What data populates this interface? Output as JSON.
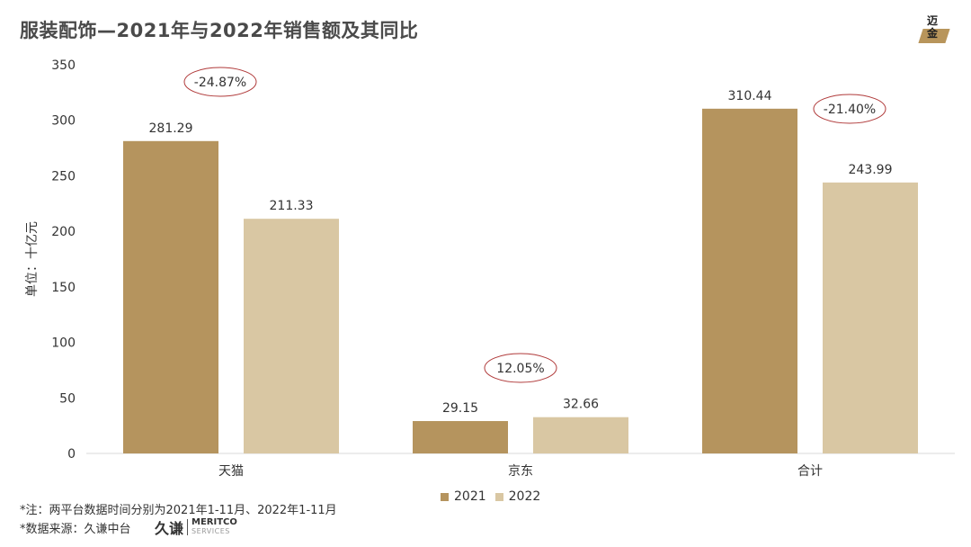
{
  "title": "服装配饰—2021年与2022年销售额及其同比",
  "logo_text": "迈金",
  "chart_data": {
    "type": "bar",
    "categories": [
      "天猫",
      "京东",
      "合计"
    ],
    "series": [
      {
        "name": "2021",
        "values": [
          281.29,
          29.15,
          310.44
        ],
        "color": "#b5945e"
      },
      {
        "name": "2022",
        "values": [
          211.33,
          32.66,
          243.99
        ],
        "color": "#d9c7a3"
      }
    ],
    "data_labels": [
      [
        "281.29",
        "29.15",
        "310.44"
      ],
      [
        "211.33",
        "32.66",
        "243.99"
      ]
    ],
    "yoy_labels": [
      "-24.87%",
      "12.05%",
      "-21.40%"
    ],
    "ylabel": "单位：十亿元",
    "ylim": [
      0,
      350
    ],
    "yticks": [
      0,
      50,
      100,
      150,
      200,
      250,
      300,
      350
    ],
    "legend_position": "bottom",
    "grid": false
  },
  "footnote_1": "*注：两平台数据时间分别为2021年1-11月、2022年1-11月",
  "footnote_2": "*数据来源：久谦中台",
  "brand": {
    "cn": "久谦",
    "en_main": "MERITCO",
    "en_sub": "SERVICES"
  }
}
